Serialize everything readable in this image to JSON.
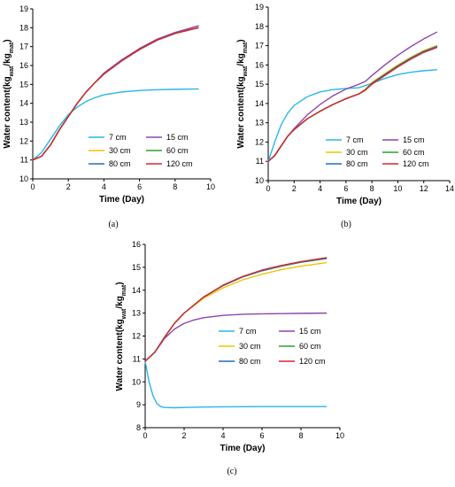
{
  "chart_data": [
    {
      "type": "line",
      "panel_label": "(a)",
      "xlabel": "Time (Day)",
      "ylabel": {
        "base": "Water content(kg",
        "sub1": "wat",
        "mid": "/kg",
        "sub2": "mat",
        "end": ")"
      },
      "xlim": [
        0,
        10
      ],
      "ylim": [
        10,
        19
      ],
      "xticks": [
        "0",
        "2",
        "4",
        "6",
        "8",
        "10"
      ],
      "yticks": [
        "10",
        "11",
        "12",
        "13",
        "14",
        "15",
        "16",
        "17",
        "18",
        "19"
      ],
      "legend_position": "bottom-right",
      "series": [
        {
          "name": "7 cm",
          "color": "#29b6e6",
          "x": [
            0,
            0.5,
            1,
            1.5,
            2,
            2.5,
            3,
            3.5,
            4,
            5,
            6,
            7,
            8,
            9.3
          ],
          "y": [
            11.0,
            11.4,
            12.1,
            12.8,
            13.4,
            13.8,
            14.1,
            14.3,
            14.45,
            14.6,
            14.68,
            14.72,
            14.74,
            14.76
          ]
        },
        {
          "name": "15 cm",
          "color": "#8e44ad",
          "x": [
            0,
            0.5,
            1,
            1.5,
            2,
            2.5,
            3,
            3.5,
            4,
            5,
            6,
            7,
            8,
            9.3
          ],
          "y": [
            11.0,
            11.2,
            11.8,
            12.6,
            13.3,
            14.0,
            14.6,
            15.1,
            15.6,
            16.3,
            16.9,
            17.4,
            17.75,
            18.1
          ]
        },
        {
          "name": "30 cm",
          "color": "#f2c300",
          "x": [
            0,
            0.5,
            1,
            1.5,
            2,
            2.5,
            3,
            3.5,
            4,
            5,
            6,
            7,
            8,
            9.3
          ],
          "y": [
            11.0,
            11.2,
            11.8,
            12.6,
            13.3,
            14.0,
            14.6,
            15.1,
            15.55,
            16.25,
            16.85,
            17.35,
            17.7,
            18.0
          ]
        },
        {
          "name": "60 cm",
          "color": "#2ca02c",
          "x": [
            0,
            0.5,
            1,
            1.5,
            2,
            2.5,
            3,
            3.5,
            4,
            5,
            6,
            7,
            8,
            9.3
          ],
          "y": [
            11.0,
            11.2,
            11.8,
            12.6,
            13.3,
            14.0,
            14.6,
            15.1,
            15.55,
            16.25,
            16.85,
            17.35,
            17.7,
            18.0
          ]
        },
        {
          "name": "80 cm",
          "color": "#1f6fc4",
          "x": [
            0,
            0.5,
            1,
            1.5,
            2,
            2.5,
            3,
            3.5,
            4,
            5,
            6,
            7,
            8,
            9.3
          ],
          "y": [
            11.0,
            11.2,
            11.8,
            12.6,
            13.3,
            14.0,
            14.6,
            15.1,
            15.55,
            16.25,
            16.85,
            17.35,
            17.7,
            18.0
          ]
        },
        {
          "name": "120 cm",
          "color": "#d62728",
          "x": [
            0,
            0.5,
            1,
            1.5,
            2,
            2.5,
            3,
            3.5,
            4,
            5,
            6,
            7,
            8,
            9.3
          ],
          "y": [
            11.0,
            11.2,
            11.8,
            12.6,
            13.3,
            14.0,
            14.6,
            15.1,
            15.55,
            16.25,
            16.85,
            17.35,
            17.7,
            18.0
          ]
        }
      ]
    },
    {
      "type": "line",
      "panel_label": "(b)",
      "xlabel": "Time (Day)",
      "ylabel": {
        "base": "Water content(kg",
        "sub1": "wat",
        "mid": "/kg",
        "sub2": "mat",
        "end": ")"
      },
      "xlim": [
        0,
        14
      ],
      "ylim": [
        10,
        19
      ],
      "xticks": [
        "0",
        "2",
        "4",
        "6",
        "8",
        "10",
        "12",
        "14"
      ],
      "yticks": [
        "10",
        "11",
        "12",
        "13",
        "14",
        "15",
        "16",
        "17",
        "18",
        "19"
      ],
      "legend_position": "bottom-right",
      "series": [
        {
          "name": "7 cm",
          "color": "#29b6e6",
          "x": [
            0,
            0.5,
            1,
            1.5,
            2,
            3,
            4,
            5,
            6,
            7,
            8,
            9,
            10,
            11,
            12,
            13
          ],
          "y": [
            11.0,
            12.0,
            12.9,
            13.5,
            13.9,
            14.35,
            14.6,
            14.72,
            14.78,
            14.82,
            15.05,
            15.3,
            15.5,
            15.62,
            15.7,
            15.75
          ]
        },
        {
          "name": "15 cm",
          "color": "#8e44ad",
          "x": [
            0,
            0.5,
            1,
            1.5,
            2,
            3,
            4,
            5,
            6,
            7,
            7.5,
            8,
            9,
            10,
            11,
            12,
            13
          ],
          "y": [
            11.0,
            11.3,
            11.8,
            12.3,
            12.7,
            13.4,
            13.95,
            14.4,
            14.75,
            15.0,
            15.15,
            15.45,
            16.0,
            16.5,
            16.95,
            17.35,
            17.7
          ]
        },
        {
          "name": "30 cm",
          "color": "#f2c300",
          "x": [
            0,
            0.5,
            1,
            1.5,
            2,
            3,
            4,
            5,
            6,
            7,
            7.5,
            8,
            9,
            10,
            11,
            12,
            13
          ],
          "y": [
            11.0,
            11.3,
            11.8,
            12.3,
            12.65,
            13.2,
            13.6,
            13.95,
            14.25,
            14.5,
            14.75,
            15.1,
            15.55,
            16.0,
            16.4,
            16.75,
            17.0
          ]
        },
        {
          "name": "60 cm",
          "color": "#2ca02c",
          "x": [
            0,
            0.5,
            1,
            1.5,
            2,
            3,
            4,
            5,
            6,
            7,
            7.5,
            8,
            9,
            10,
            11,
            12,
            13
          ],
          "y": [
            11.0,
            11.3,
            11.8,
            12.3,
            12.65,
            13.2,
            13.6,
            13.95,
            14.25,
            14.5,
            14.72,
            15.05,
            15.5,
            15.95,
            16.35,
            16.7,
            16.95
          ]
        },
        {
          "name": "80 cm",
          "color": "#1f6fc4",
          "x": [
            0,
            0.5,
            1,
            1.5,
            2,
            3,
            4,
            5,
            6,
            7,
            7.5,
            8,
            9,
            10,
            11,
            12,
            13
          ],
          "y": [
            11.0,
            11.3,
            11.8,
            12.3,
            12.65,
            13.2,
            13.6,
            13.95,
            14.25,
            14.5,
            14.7,
            15.05,
            15.5,
            15.95,
            16.35,
            16.7,
            16.95
          ]
        },
        {
          "name": "120 cm",
          "color": "#d62728",
          "x": [
            0,
            0.5,
            1,
            1.5,
            2,
            3,
            4,
            5,
            6,
            7,
            7.5,
            8,
            9,
            10,
            11,
            12,
            13
          ],
          "y": [
            11.0,
            11.3,
            11.8,
            12.3,
            12.65,
            13.2,
            13.6,
            13.95,
            14.25,
            14.5,
            14.7,
            15.0,
            15.45,
            15.9,
            16.3,
            16.65,
            16.9
          ]
        }
      ]
    },
    {
      "type": "line",
      "panel_label": "(c)",
      "xlabel": "Time (Day)",
      "ylabel": {
        "base": "Water content(kg",
        "sub1": "wat",
        "mid": "/kg",
        "sub2": "mat",
        "end": ")"
      },
      "xlim": [
        0,
        10
      ],
      "ylim": [
        8,
        16
      ],
      "xticks": [
        "0",
        "2",
        "4",
        "6",
        "8",
        "10"
      ],
      "yticks": [
        "8",
        "9",
        "10",
        "11",
        "12",
        "13",
        "14",
        "15",
        "16"
      ],
      "legend_position": "bottom-right",
      "series": [
        {
          "name": "7 cm",
          "color": "#29b6e6",
          "x": [
            0,
            0.2,
            0.4,
            0.6,
            0.8,
            1,
            1.5,
            2,
            3,
            4,
            6,
            8,
            9.3
          ],
          "y": [
            10.9,
            10.0,
            9.4,
            9.05,
            8.92,
            8.88,
            8.87,
            8.88,
            8.9,
            8.91,
            8.92,
            8.92,
            8.92
          ]
        },
        {
          "name": "15 cm",
          "color": "#8e44ad",
          "x": [
            0,
            0.5,
            1,
            1.5,
            2,
            2.5,
            3,
            4,
            5,
            6,
            7,
            8,
            9.3
          ],
          "y": [
            10.9,
            11.3,
            11.9,
            12.3,
            12.55,
            12.7,
            12.8,
            12.9,
            12.95,
            12.97,
            12.98,
            12.99,
            13.0
          ]
        },
        {
          "name": "30 cm",
          "color": "#f2c300",
          "x": [
            0,
            0.5,
            1,
            1.5,
            2,
            3,
            4,
            5,
            6,
            7,
            8,
            9.3
          ],
          "y": [
            10.9,
            11.3,
            11.95,
            12.55,
            13.0,
            13.65,
            14.1,
            14.45,
            14.7,
            14.9,
            15.05,
            15.2
          ]
        },
        {
          "name": "60 cm",
          "color": "#2ca02c",
          "x": [
            0,
            0.5,
            1,
            1.5,
            2,
            3,
            4,
            5,
            6,
            7,
            8,
            9.3
          ],
          "y": [
            10.9,
            11.3,
            11.95,
            12.55,
            13.0,
            13.7,
            14.2,
            14.58,
            14.85,
            15.05,
            15.22,
            15.38
          ]
        },
        {
          "name": "80 cm",
          "color": "#1f6fc4",
          "x": [
            0,
            0.5,
            1,
            1.5,
            2,
            3,
            4,
            5,
            6,
            7,
            8,
            9.3
          ],
          "y": [
            10.9,
            11.3,
            11.95,
            12.55,
            13.0,
            13.7,
            14.2,
            14.58,
            14.85,
            15.06,
            15.23,
            15.4
          ]
        },
        {
          "name": "120 cm",
          "color": "#d62728",
          "x": [
            0,
            0.5,
            1,
            1.5,
            2,
            3,
            4,
            5,
            6,
            7,
            8,
            9.3
          ],
          "y": [
            10.9,
            11.3,
            11.95,
            12.55,
            13.0,
            13.7,
            14.22,
            14.6,
            14.88,
            15.08,
            15.25,
            15.42
          ]
        }
      ]
    }
  ]
}
